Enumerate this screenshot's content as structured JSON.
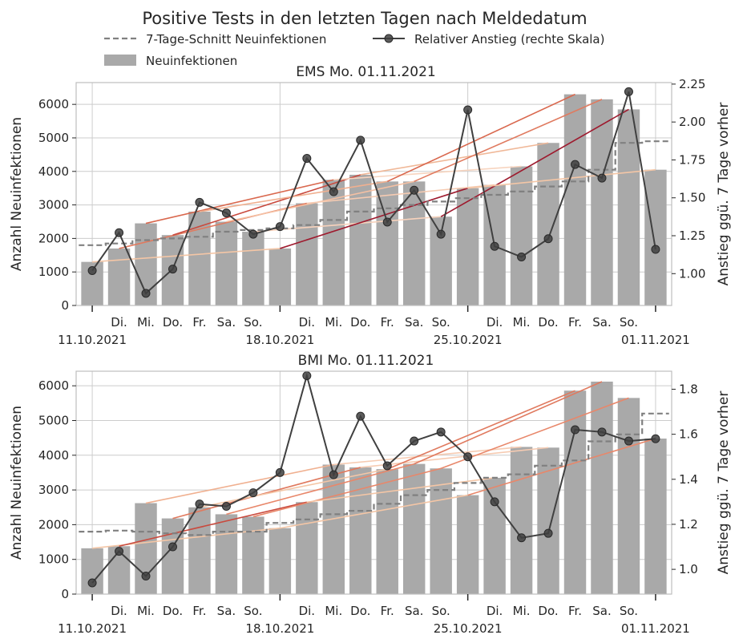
{
  "figure": {
    "suptitle": "Positive Tests in den letzten Tagen nach Meldedatum",
    "legend": {
      "placement": "top-center",
      "items": [
        {
          "label": "7-Tage-Schnitt Neuinfektionen",
          "kind": "dashed-line",
          "color": "#808080"
        },
        {
          "label": "Relativer Anstieg (rechte Skala)",
          "kind": "line-marker",
          "color": "#404040"
        },
        {
          "label": "Neuinfektionen",
          "kind": "bar",
          "color": "#a9a9a9"
        }
      ]
    }
  },
  "chart_data": [
    {
      "type": "bar",
      "title": "EMS Mo. 01.11.2021",
      "ylabel": "Anzahl Neuinfektionen",
      "y2label": "Anstieg ggü. 7 Tage vorher",
      "ylim": [
        0,
        6650
      ],
      "y2lim": [
        0.79,
        2.26
      ],
      "yticks": [
        0,
        1000,
        2000,
        3000,
        4000,
        5000,
        6000
      ],
      "y2ticks": [
        1.0,
        1.25,
        1.5,
        1.75,
        2.0,
        2.25
      ],
      "y2ticklabels": [
        "1.00",
        "1.25",
        "1.50",
        "1.75",
        "2.00",
        "2.25"
      ],
      "grid": true,
      "x_day_labels": [
        "",
        "Di.",
        "Mi.",
        "Do.",
        "Fr.",
        "Sa.",
        "So.",
        "",
        "Di.",
        "Mi.",
        "Do.",
        "Fr.",
        "Sa.",
        "So.",
        "",
        "Di.",
        "Mi.",
        "Do.",
        "Fr.",
        "Sa.",
        "So.",
        ""
      ],
      "x_date_labels": [
        "11.10.2021",
        "18.10.2021",
        "25.10.2021",
        "01.11.2021"
      ],
      "bars": {
        "name": "Neuinfektionen",
        "values": [
          1300,
          1700,
          2450,
          2100,
          2800,
          2500,
          2200,
          1700,
          3050,
          3750,
          3900,
          3700,
          3700,
          2650,
          3500,
          3600,
          4150,
          4850,
          6300,
          6150,
          5850,
          4050
        ]
      },
      "avg7": {
        "name": "7-Tage-Schnitt Neuinfektionen",
        "values": [
          1800,
          1850,
          1950,
          2000,
          2050,
          2200,
          2250,
          2300,
          2400,
          2550,
          2800,
          2900,
          3000,
          3100,
          3200,
          3300,
          3400,
          3550,
          3700,
          4050,
          4850,
          4900
        ]
      },
      "ratio": {
        "name": "Relativer Anstieg (rechte Skala)",
        "values": [
          1.02,
          1.27,
          0.87,
          1.03,
          1.47,
          1.4,
          1.26,
          1.31,
          1.76,
          1.54,
          1.88,
          1.34,
          1.55,
          1.26,
          2.08,
          1.18,
          1.11,
          1.23,
          1.72,
          1.63,
          2.2,
          1.16
        ]
      },
      "trend_lines": [
        {
          "from": [
            0,
            1300
          ],
          "to": [
            7,
            1700
          ],
          "color": "#f4c6a6"
        },
        {
          "from": [
            1,
            1700
          ],
          "to": [
            8,
            3050
          ],
          "color": "#e07a5f"
        },
        {
          "from": [
            2,
            2450
          ],
          "to": [
            9,
            3750
          ],
          "color": "#d9684e"
        },
        {
          "from": [
            3,
            2100
          ],
          "to": [
            10,
            3900
          ],
          "color": "#c94a3e"
        },
        {
          "from": [
            4,
            2800
          ],
          "to": [
            11,
            3700
          ],
          "color": "#f0b090"
        },
        {
          "from": [
            5,
            2500
          ],
          "to": [
            12,
            3700
          ],
          "color": "#f5c0a3"
        },
        {
          "from": [
            6,
            2200
          ],
          "to": [
            13,
            2650
          ],
          "color": "#f7d2bc"
        },
        {
          "from": [
            7,
            1700
          ],
          "to": [
            14,
            3500
          ],
          "color": "#9e1a2e"
        },
        {
          "from": [
            8,
            3050
          ],
          "to": [
            15,
            3600
          ],
          "color": "#f6cbb2"
        },
        {
          "from": [
            9,
            3750
          ],
          "to": [
            16,
            4150
          ],
          "color": "#f7d4bf"
        },
        {
          "from": [
            10,
            3900
          ],
          "to": [
            17,
            4850
          ],
          "color": "#f0b898"
        },
        {
          "from": [
            11,
            3700
          ],
          "to": [
            18,
            6300
          ],
          "color": "#d9684e"
        },
        {
          "from": [
            12,
            3700
          ],
          "to": [
            19,
            6150
          ],
          "color": "#e07a5f"
        },
        {
          "from": [
            13,
            2650
          ],
          "to": [
            20,
            5850
          ],
          "color": "#9e1a2e"
        },
        {
          "from": [
            14,
            3500
          ],
          "to": [
            21,
            4050
          ],
          "color": "#f4c6a6"
        }
      ]
    },
    {
      "type": "bar",
      "title": "BMI Mo. 01.11.2021",
      "ylabel": "Anzahl Neuinfektionen",
      "y2label": "Anstieg ggü. 7 Tage vorher",
      "ylim": [
        0,
        6420
      ],
      "y2lim": [
        0.89,
        1.88
      ],
      "yticks": [
        0,
        1000,
        2000,
        3000,
        4000,
        5000,
        6000
      ],
      "y2ticks": [
        1.0,
        1.2,
        1.4,
        1.6,
        1.8
      ],
      "y2ticklabels": [
        "1.0",
        "1.2",
        "1.4",
        "1.6",
        "1.8"
      ],
      "grid": true,
      "x_day_labels": [
        "",
        "Di.",
        "Mi.",
        "Do.",
        "Fr.",
        "Sa.",
        "So.",
        "",
        "Di.",
        "Mi.",
        "Do.",
        "Fr.",
        "Sa.",
        "So.",
        "",
        "Di.",
        "Mi.",
        "Do.",
        "Fr.",
        "Sa.",
        "So.",
        ""
      ],
      "x_date_labels": [
        "11.10.2021",
        "18.10.2021",
        "25.10.2021",
        "01.11.2021"
      ],
      "bars": {
        "name": "Neuinfektionen",
        "values": [
          1320,
          1380,
          2620,
          2180,
          2500,
          2300,
          2230,
          1900,
          2650,
          3730,
          3650,
          3600,
          3750,
          3620,
          2850,
          3350,
          4240,
          4220,
          5860,
          6120,
          5650,
          4480
        ]
      },
      "avg7": {
        "name": "7-Tage-Schnitt Neuinfektionen",
        "values": [
          1800,
          1830,
          1800,
          1750,
          1700,
          1800,
          1800,
          2050,
          2150,
          2300,
          2400,
          2600,
          2850,
          3000,
          3200,
          3350,
          3450,
          3700,
          3850,
          4400,
          4600,
          5200
        ]
      },
      "ratio": {
        "name": "Relativer Anstieg (rechte Skala)",
        "values": [
          0.94,
          1.08,
          0.97,
          1.1,
          1.29,
          1.28,
          1.34,
          1.43,
          1.86,
          1.42,
          1.68,
          1.46,
          1.57,
          1.61,
          1.5,
          1.3,
          1.14,
          1.16,
          1.62,
          1.61,
          1.57,
          1.58
        ]
      },
      "trend_lines": [
        {
          "from": [
            0,
            1320
          ],
          "to": [
            7,
            1900
          ],
          "color": "#f4c6a6"
        },
        {
          "from": [
            1,
            1380
          ],
          "to": [
            8,
            2650
          ],
          "color": "#c94a3e"
        },
        {
          "from": [
            2,
            2620
          ],
          "to": [
            9,
            3730
          ],
          "color": "#f0b090"
        },
        {
          "from": [
            3,
            2180
          ],
          "to": [
            10,
            3650
          ],
          "color": "#e07a5f"
        },
        {
          "from": [
            4,
            2500
          ],
          "to": [
            11,
            3600
          ],
          "color": "#f4c6a6"
        },
        {
          "from": [
            5,
            2300
          ],
          "to": [
            12,
            3750
          ],
          "color": "#e8876a"
        },
        {
          "from": [
            6,
            2230
          ],
          "to": [
            13,
            3620
          ],
          "color": "#e8876a"
        },
        {
          "from": [
            7,
            1900
          ],
          "to": [
            14,
            2850
          ],
          "color": "#f4c6a6"
        },
        {
          "from": [
            8,
            2650
          ],
          "to": [
            15,
            3350
          ],
          "color": "#f4c6a6"
        },
        {
          "from": [
            9,
            3730
          ],
          "to": [
            16,
            4240
          ],
          "color": "#f6cbb2"
        },
        {
          "from": [
            10,
            3650
          ],
          "to": [
            17,
            4220
          ],
          "color": "#f6cbb2"
        },
        {
          "from": [
            11,
            3600
          ],
          "to": [
            18,
            5860
          ],
          "color": "#e07a5f"
        },
        {
          "from": [
            12,
            3750
          ],
          "to": [
            19,
            6120
          ],
          "color": "#e07a5f"
        },
        {
          "from": [
            13,
            3620
          ],
          "to": [
            20,
            5650
          ],
          "color": "#e8876a"
        },
        {
          "from": [
            14,
            2850
          ],
          "to": [
            21,
            4480
          ],
          "color": "#e8876a"
        }
      ]
    }
  ]
}
